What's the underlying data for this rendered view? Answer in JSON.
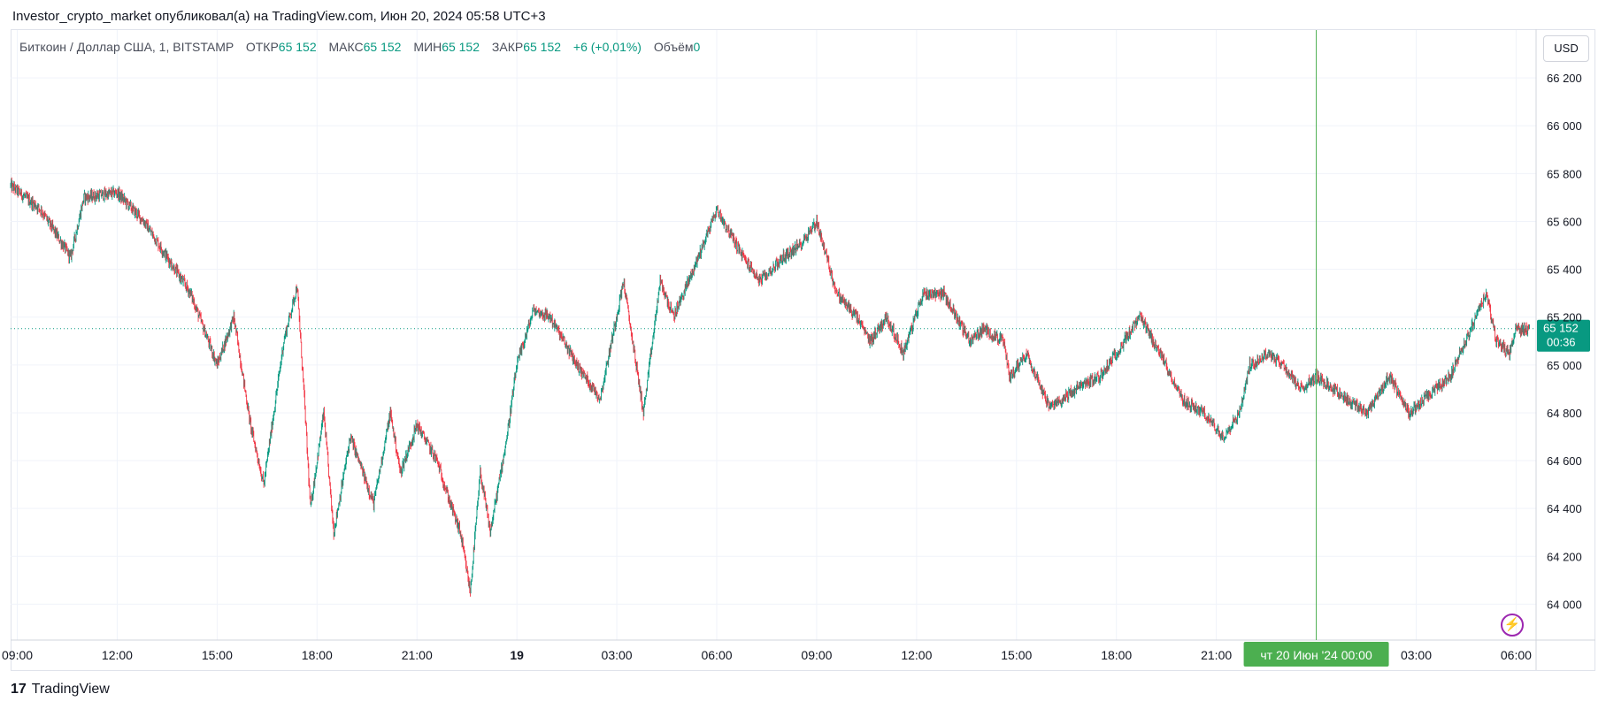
{
  "header": {
    "text": "Investor_crypto_market опубликовал(а) на TradingView.com, Июн 20, 2024 05:58 UTC+3"
  },
  "legend": {
    "symbol": "Биткоин / Доллар США, 1, BITSTAMP",
    "open_label": "ОТКР",
    "open": "65 152",
    "high_label": "МАКС",
    "high": "65 152",
    "low_label": "МИН",
    "low": "65 152",
    "close_label": "ЗАКР",
    "close": "65 152",
    "change": "+6 (+0,01%)",
    "volume_label": "Объём",
    "volume": "0"
  },
  "currency": "USD",
  "price_tag": {
    "price": "65 152",
    "countdown": "00:36"
  },
  "crosshair": {
    "label": "чт 20 Июн '24   00:00"
  },
  "footer": {
    "brand": "TradingView"
  },
  "colors": {
    "up": "#089981",
    "down": "#f23645",
    "price_tag": "#089981",
    "crosshair": "#4caf50",
    "grid": "#f0f3fa"
  },
  "icons": {
    "flash": "lightning-icon",
    "logo": "tradingview-logo-icon"
  },
  "chart_data": {
    "type": "candlestick",
    "symbol": "Биткоин / Доллар США",
    "interval": "1",
    "exchange": "BITSTAMP",
    "ylim": [
      63850,
      66400
    ],
    "y_ticks": [
      64000,
      64200,
      64400,
      64600,
      64800,
      65000,
      65200,
      65400,
      65600,
      65800,
      66000,
      66200
    ],
    "y_tick_labels": [
      "64 000",
      "64 200",
      "64 400",
      "64 600",
      "64 800",
      "65 000",
      "65 200",
      "65 400",
      "65 600",
      "65 800",
      "66 000",
      "66 200"
    ],
    "x_hours": [
      -15.2,
      30.6
    ],
    "x_ticks": [
      {
        "h": -15,
        "label": "09:00",
        "bold": false
      },
      {
        "h": -12,
        "label": "12:00",
        "bold": false
      },
      {
        "h": -9,
        "label": "15:00",
        "bold": false
      },
      {
        "h": -6,
        "label": "18:00",
        "bold": false
      },
      {
        "h": -3,
        "label": "21:00",
        "bold": false
      },
      {
        "h": 0,
        "label": "19",
        "bold": true
      },
      {
        "h": 3,
        "label": "03:00",
        "bold": false
      },
      {
        "h": 6,
        "label": "06:00",
        "bold": false
      },
      {
        "h": 9,
        "label": "09:00",
        "bold": false
      },
      {
        "h": 12,
        "label": "12:00",
        "bold": false
      },
      {
        "h": 15,
        "label": "15:00",
        "bold": false
      },
      {
        "h": 18,
        "label": "18:00",
        "bold": false
      },
      {
        "h": 21,
        "label": "21:00",
        "bold": false
      },
      {
        "h": 27,
        "label": "03:00",
        "bold": false
      },
      {
        "h": 30,
        "label": "06:00",
        "bold": false
      }
    ],
    "crosshair_h": 24,
    "last_price": 65152,
    "path_hours": [
      -15.2,
      -14.3,
      -13.4,
      -13.0,
      -12.0,
      -11.2,
      -10.5,
      -9.8,
      -9.0,
      -8.5,
      -8.0,
      -7.6,
      -7.0,
      -6.6,
      -6.4,
      -6.2,
      -5.8,
      -5.5,
      -5.0,
      -4.3,
      -3.8,
      -3.5,
      -3.0,
      -2.4,
      -2.0,
      -1.7,
      -1.4,
      -1.1,
      -0.8,
      -0.3,
      0.0,
      0.5,
      1.0,
      1.8,
      2.5,
      3.2,
      3.8,
      4.3,
      4.7,
      5.3,
      6.0,
      6.8,
      7.3,
      8.0,
      8.5,
      9.0,
      9.6,
      10.2,
      10.6,
      11.1,
      11.6,
      12.2,
      12.8,
      13.6,
      14.0,
      14.6,
      14.8,
      15.3,
      16.0,
      17.0,
      17.5,
      18.0,
      18.7,
      19.3,
      20.0,
      20.6,
      21.2,
      21.7,
      22.0,
      22.6,
      23.0,
      23.5,
      24.0,
      24.5,
      25.0,
      25.5,
      26.2,
      26.8,
      27.2,
      28.0,
      28.8,
      29.1,
      29.4,
      29.8,
      30.0,
      30.4
    ],
    "path_prices": [
      65750,
      65650,
      65450,
      65700,
      65720,
      65600,
      65450,
      65300,
      65000,
      65200,
      64750,
      64500,
      65100,
      65330,
      64900,
      64400,
      64800,
      64300,
      64700,
      64420,
      64800,
      64550,
      64750,
      64600,
      64420,
      64300,
      64050,
      64550,
      64300,
      64700,
      65000,
      65230,
      65200,
      65000,
      64860,
      65350,
      64800,
      65350,
      65200,
      65400,
      65650,
      65450,
      65350,
      65450,
      65500,
      65600,
      65300,
      65200,
      65100,
      65200,
      65050,
      65300,
      65300,
      65100,
      65150,
      65100,
      64950,
      65050,
      64820,
      64920,
      64950,
      65050,
      65200,
      65050,
      64850,
      64800,
      64700,
      64800,
      65000,
      65050,
      65000,
      64900,
      64950,
      64900,
      64850,
      64800,
      64950,
      64800,
      64850,
      64950,
      65200,
      65300,
      65100,
      65050,
      65150,
      65152
    ]
  }
}
